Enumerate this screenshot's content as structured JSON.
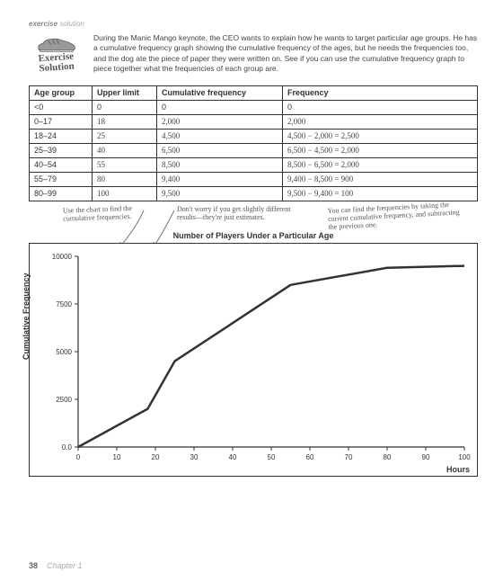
{
  "header_label_bold": "exercise",
  "header_label_light": "solution",
  "badge_line1": "Exercise",
  "badge_line2": "Solution",
  "intro": "During the Manic Mango keynote, the CEO wants to explain how he wants to target particular age groups. He has a cumulative frequency graph showing the cumulative frequency of the ages, but he needs the frequencies too, and the dog ate the piece of paper they were written on. See if you can use the cumulative frequency graph to piece together what the frequencies of each group are.",
  "table": {
    "headers": [
      "Age group",
      "Upper limit",
      "Cumulative frequency",
      "Frequency"
    ],
    "rows": [
      {
        "age": "<0",
        "upper": "0",
        "cum": "0",
        "freq": "0"
      },
      {
        "age": "0–17",
        "upper": "18",
        "cum": "2,000",
        "freq": "2,000"
      },
      {
        "age": "18–24",
        "upper": "25",
        "cum": "4,500",
        "freq": "4,500 − 2,000 = 2,500"
      },
      {
        "age": "25–39",
        "upper": "40",
        "cum": "6,500",
        "freq": "6,500 − 4,500 = 2,000"
      },
      {
        "age": "40–54",
        "upper": "55",
        "cum": "8,500",
        "freq": "8,500 − 6,500 = 2,000"
      },
      {
        "age": "55–79",
        "upper": "80",
        "cum": "9,400",
        "freq": "9,400 − 8,500 = 900"
      },
      {
        "age": "80–99",
        "upper": "100",
        "cum": "9,500",
        "freq": "9,500 − 9,400 = 100"
      }
    ]
  },
  "anno1": "Use the chart to find the cumulative frequencies.",
  "anno2": "Don't worry if you get slightly different results—they're just estimates.",
  "anno3": "You can find the frequencies by taking the current cumulative frequency, and subtracting the previous one.",
  "chart": {
    "title": "Number of Players Under a Particular Age",
    "y_label": "Cumulative Frequency",
    "x_label": "Hours",
    "xlim": [
      0,
      100
    ],
    "ylim": [
      0,
      10000
    ],
    "x_ticks": [
      0,
      10,
      20,
      30,
      40,
      50,
      60,
      70,
      80,
      90,
      100
    ],
    "y_ticks": [
      0,
      2500,
      5000,
      7500,
      10000
    ],
    "y_tick_labels": [
      "0.0",
      "2500",
      "5000",
      "7500",
      "10000"
    ],
    "line_color": "#333333",
    "line_width": 2.5,
    "border_color": "#333333",
    "background_color": "#ffffff",
    "points": [
      {
        "x": 0,
        "y": 0
      },
      {
        "x": 18,
        "y": 2000
      },
      {
        "x": 25,
        "y": 4500
      },
      {
        "x": 40,
        "y": 6500
      },
      {
        "x": 55,
        "y": 8500
      },
      {
        "x": 80,
        "y": 9400
      },
      {
        "x": 100,
        "y": 9500
      }
    ]
  },
  "page_number": "38",
  "chapter_label": "Chapter 1"
}
